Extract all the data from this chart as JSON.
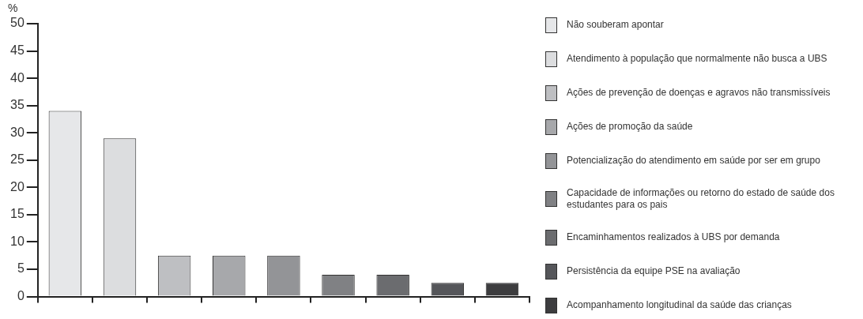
{
  "chart_data": {
    "type": "bar",
    "ylabel": "%",
    "categories": [
      null,
      null,
      null,
      null,
      null,
      null,
      null,
      null,
      null
    ],
    "series": [
      {
        "name": "Não souberam apontar",
        "color": "#e6e7e9",
        "values": [
          34,
          null,
          null,
          null,
          null,
          null,
          null,
          null,
          null
        ]
      },
      {
        "name": "Atendimento à população que normalmente não busca a UBS",
        "color": "#dcdddf",
        "values": [
          null,
          29,
          null,
          null,
          null,
          null,
          null,
          null,
          null
        ]
      },
      {
        "name": "Ações de prevenção de doenças e agravos não transmissíveis",
        "color": "#bebfc2",
        "values": [
          null,
          null,
          7.5,
          null,
          null,
          null,
          null,
          null,
          null
        ]
      },
      {
        "name": "Ações de promoção da saúde",
        "color": "#a7a8ab",
        "values": [
          null,
          null,
          null,
          7.5,
          null,
          null,
          null,
          null,
          null
        ]
      },
      {
        "name": "Potencialização do atendimento em saúde por ser em grupo",
        "color": "#939497",
        "values": [
          null,
          null,
          null,
          null,
          7.5,
          null,
          null,
          null,
          null
        ]
      },
      {
        "name": "Capacidade de informações ou retorno do estado de saúde dos estudantes para os pais",
        "color": "#808184",
        "values": [
          null,
          null,
          null,
          null,
          null,
          4,
          null,
          null,
          null
        ]
      },
      {
        "name": "Encaminhamentos realizados à UBS por demanda",
        "color": "#6b6c6f",
        "values": [
          null,
          null,
          null,
          null,
          null,
          null,
          4,
          null,
          null
        ]
      },
      {
        "name": "Persistência da equipe PSE na avaliação",
        "color": "#55565a",
        "values": [
          null,
          null,
          null,
          null,
          null,
          null,
          null,
          2.5,
          null
        ]
      },
      {
        "name": "Acompanhamento longitudinal da saúde das crianças",
        "color": "#3d3d3f",
        "values": [
          null,
          null,
          null,
          null,
          null,
          null,
          null,
          null,
          2.5
        ]
      }
    ],
    "ylim": [
      0,
      50
    ],
    "yticks": [
      0,
      5,
      10,
      15,
      20,
      25,
      30,
      35,
      40,
      45,
      50
    ],
    "grid": false,
    "legend": "right"
  }
}
